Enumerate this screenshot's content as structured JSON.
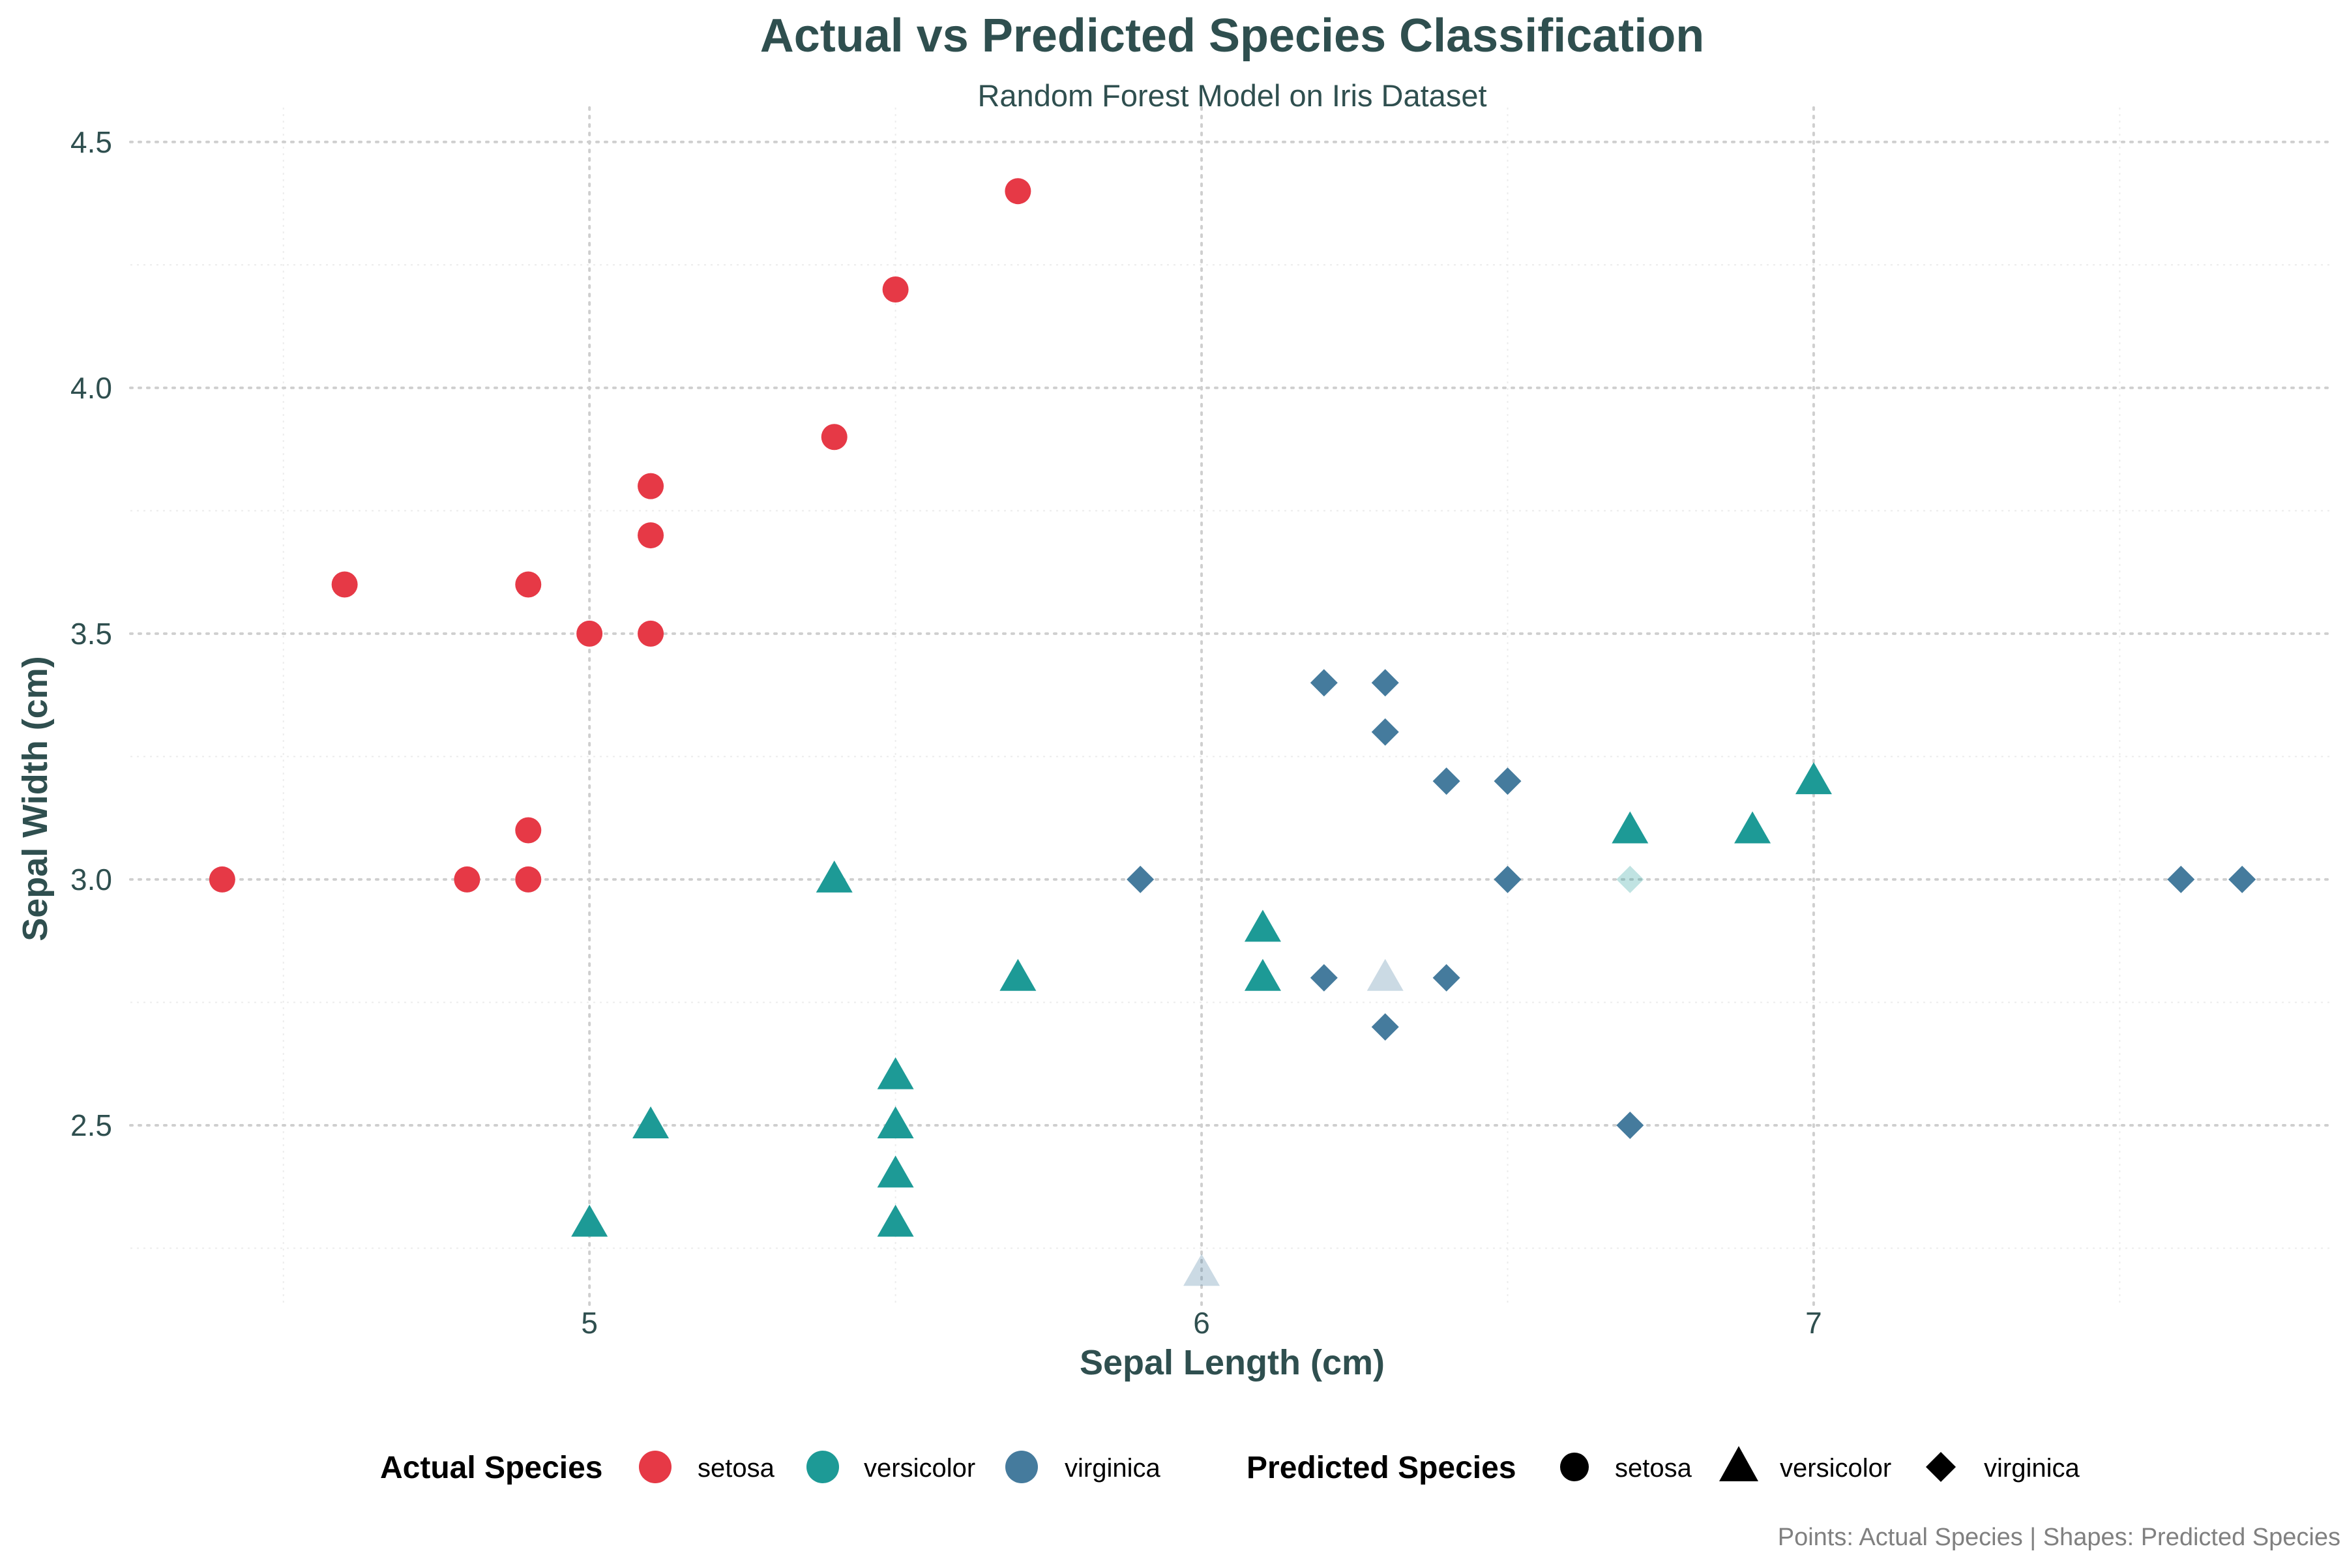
{
  "chart_data": {
    "type": "scatter",
    "title": "Actual vs Predicted Species Classification",
    "subtitle": "Random Forest Model on Iris Dataset",
    "xlabel": "Sepal Length (cm)",
    "ylabel": "Sepal Width (cm)",
    "caption": "Points: Actual Species | Shapes: Predicted Species",
    "xlim": [
      4.25,
      7.85
    ],
    "ylim": [
      2.13,
      4.57
    ],
    "x_ticks": [
      5,
      6,
      7
    ],
    "y_ticks": [
      2.5,
      3.0,
      3.5,
      4.0,
      4.5
    ],
    "x_tick_labels": [
      "5",
      "6",
      "7"
    ],
    "y_tick_labels": [
      "2.5",
      "3.0",
      "3.5",
      "4.0",
      "4.5"
    ],
    "grid": true,
    "legend_position": "bottom",
    "legend_actual_title": "Actual Species",
    "legend_predicted_title": "Predicted Species",
    "species": [
      "setosa",
      "versicolor",
      "virginica"
    ],
    "colors": {
      "setosa": "#e63946",
      "versicolor": "#1d9a96",
      "virginica": "#457b9d"
    },
    "shapes": {
      "setosa": "circle",
      "versicolor": "triangle",
      "virginica": "diamond"
    },
    "text_color": "#2f4f4f",
    "points": [
      {
        "x": 4.4,
        "y": 3.0,
        "actual": "setosa",
        "predicted": "setosa"
      },
      {
        "x": 4.6,
        "y": 3.6,
        "actual": "setosa",
        "predicted": "setosa"
      },
      {
        "x": 4.8,
        "y": 3.0,
        "actual": "setosa",
        "predicted": "setosa"
      },
      {
        "x": 4.9,
        "y": 3.6,
        "actual": "setosa",
        "predicted": "setosa"
      },
      {
        "x": 4.9,
        "y": 3.1,
        "actual": "setosa",
        "predicted": "setosa"
      },
      {
        "x": 4.9,
        "y": 3.0,
        "actual": "setosa",
        "predicted": "setosa"
      },
      {
        "x": 5.0,
        "y": 3.5,
        "actual": "setosa",
        "predicted": "setosa"
      },
      {
        "x": 5.1,
        "y": 3.8,
        "actual": "setosa",
        "predicted": "setosa"
      },
      {
        "x": 5.1,
        "y": 3.7,
        "actual": "setosa",
        "predicted": "setosa"
      },
      {
        "x": 5.1,
        "y": 3.5,
        "actual": "setosa",
        "predicted": "setosa"
      },
      {
        "x": 5.4,
        "y": 3.9,
        "actual": "setosa",
        "predicted": "setosa"
      },
      {
        "x": 5.5,
        "y": 4.2,
        "actual": "setosa",
        "predicted": "setosa"
      },
      {
        "x": 5.7,
        "y": 4.4,
        "actual": "setosa",
        "predicted": "setosa"
      },
      {
        "x": 5.0,
        "y": 2.3,
        "actual": "versicolor",
        "predicted": "versicolor"
      },
      {
        "x": 5.1,
        "y": 2.5,
        "actual": "versicolor",
        "predicted": "versicolor"
      },
      {
        "x": 5.4,
        "y": 3.0,
        "actual": "versicolor",
        "predicted": "versicolor"
      },
      {
        "x": 5.5,
        "y": 2.6,
        "actual": "versicolor",
        "predicted": "versicolor"
      },
      {
        "x": 5.5,
        "y": 2.5,
        "actual": "versicolor",
        "predicted": "versicolor"
      },
      {
        "x": 5.5,
        "y": 2.4,
        "actual": "versicolor",
        "predicted": "versicolor"
      },
      {
        "x": 5.5,
        "y": 2.3,
        "actual": "versicolor",
        "predicted": "versicolor"
      },
      {
        "x": 5.7,
        "y": 2.8,
        "actual": "versicolor",
        "predicted": "versicolor"
      },
      {
        "x": 6.1,
        "y": 2.9,
        "actual": "versicolor",
        "predicted": "versicolor"
      },
      {
        "x": 6.1,
        "y": 2.8,
        "actual": "versicolor",
        "predicted": "versicolor"
      },
      {
        "x": 6.7,
        "y": 3.1,
        "actual": "versicolor",
        "predicted": "versicolor"
      },
      {
        "x": 6.9,
        "y": 3.1,
        "actual": "versicolor",
        "predicted": "versicolor"
      },
      {
        "x": 7.0,
        "y": 3.2,
        "actual": "versicolor",
        "predicted": "versicolor"
      },
      {
        "x": 6.7,
        "y": 3.0,
        "actual": "versicolor",
        "predicted": "virginica",
        "faded": true
      },
      {
        "x": 6.0,
        "y": 2.2,
        "actual": "virginica",
        "predicted": "versicolor",
        "faded": true
      },
      {
        "x": 6.3,
        "y": 2.8,
        "actual": "virginica",
        "predicted": "versicolor",
        "faded": true
      },
      {
        "x": 5.9,
        "y": 3.0,
        "actual": "virginica",
        "predicted": "virginica"
      },
      {
        "x": 6.2,
        "y": 3.4,
        "actual": "virginica",
        "predicted": "virginica"
      },
      {
        "x": 6.2,
        "y": 2.8,
        "actual": "virginica",
        "predicted": "virginica"
      },
      {
        "x": 6.3,
        "y": 3.4,
        "actual": "virginica",
        "predicted": "virginica"
      },
      {
        "x": 6.3,
        "y": 3.3,
        "actual": "virginica",
        "predicted": "virginica"
      },
      {
        "x": 6.3,
        "y": 2.7,
        "actual": "virginica",
        "predicted": "virginica"
      },
      {
        "x": 6.4,
        "y": 3.2,
        "actual": "virginica",
        "predicted": "virginica"
      },
      {
        "x": 6.4,
        "y": 2.8,
        "actual": "virginica",
        "predicted": "virginica"
      },
      {
        "x": 6.5,
        "y": 3.2,
        "actual": "virginica",
        "predicted": "virginica"
      },
      {
        "x": 6.5,
        "y": 3.0,
        "actual": "virginica",
        "predicted": "virginica"
      },
      {
        "x": 6.7,
        "y": 2.5,
        "actual": "virginica",
        "predicted": "virginica"
      },
      {
        "x": 7.6,
        "y": 3.0,
        "actual": "virginica",
        "predicted": "virginica"
      },
      {
        "x": 7.7,
        "y": 3.0,
        "actual": "virginica",
        "predicted": "virginica"
      }
    ]
  }
}
